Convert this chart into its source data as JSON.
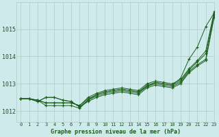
{
  "bg_color": "#ceeaea",
  "grid_color": "#b0c8c8",
  "line_color": "#1a5c1a",
  "title": "Graphe pression niveau de la mer (hPa)",
  "xlim": [
    -0.5,
    23
  ],
  "ylim": [
    1011.6,
    1016.0
  ],
  "yticks": [
    1012,
    1013,
    1014,
    1015
  ],
  "xticks": [
    0,
    1,
    2,
    3,
    4,
    5,
    6,
    7,
    8,
    9,
    10,
    11,
    12,
    13,
    14,
    15,
    16,
    17,
    18,
    19,
    20,
    21,
    22,
    23
  ],
  "series": [
    [
      1012.45,
      1012.45,
      1012.4,
      1012.2,
      1012.2,
      1012.2,
      1012.2,
      1012.1,
      1012.4,
      1012.6,
      1012.7,
      1012.75,
      1012.8,
      1012.75,
      1012.7,
      1012.9,
      1013.05,
      1013.0,
      1012.95,
      1013.2,
      1013.9,
      1014.35,
      1015.1,
      1015.6
    ],
    [
      1012.45,
      1012.45,
      1012.4,
      1012.3,
      1012.3,
      1012.3,
      1012.3,
      1012.2,
      1012.5,
      1012.65,
      1012.75,
      1012.8,
      1012.85,
      1012.8,
      1012.75,
      1013.0,
      1013.1,
      1013.05,
      1013.0,
      1013.15,
      1013.55,
      1013.85,
      1014.2,
      1015.65
    ],
    [
      1012.45,
      1012.45,
      1012.4,
      1012.3,
      1012.3,
      1012.3,
      1012.3,
      1012.2,
      1012.45,
      1012.6,
      1012.7,
      1012.75,
      1012.8,
      1012.75,
      1012.7,
      1012.95,
      1013.05,
      1013.0,
      1012.95,
      1013.1,
      1013.5,
      1013.8,
      1014.1,
      1015.58
    ],
    [
      1012.45,
      1012.45,
      1012.35,
      1012.5,
      1012.5,
      1012.4,
      1012.35,
      1012.15,
      1012.4,
      1012.55,
      1012.65,
      1012.7,
      1012.75,
      1012.7,
      1012.65,
      1012.9,
      1013.0,
      1012.95,
      1012.9,
      1013.05,
      1013.45,
      1013.7,
      1013.9,
      1015.5
    ],
    [
      1012.45,
      1012.45,
      1012.35,
      1012.5,
      1012.5,
      1012.4,
      1012.35,
      1012.15,
      1012.35,
      1012.5,
      1012.6,
      1012.65,
      1012.7,
      1012.65,
      1012.6,
      1012.85,
      1012.95,
      1012.9,
      1012.85,
      1013.0,
      1013.4,
      1013.65,
      1013.85,
      1015.45
    ]
  ]
}
